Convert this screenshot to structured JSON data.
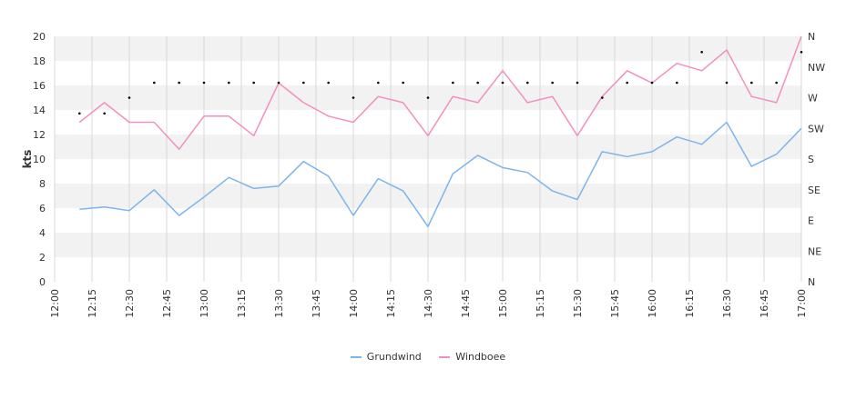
{
  "chart_data": {
    "type": "line",
    "ylabel": "kts",
    "ylim": [
      0,
      20
    ],
    "yticks": [
      0,
      2,
      4,
      6,
      8,
      10,
      12,
      14,
      16,
      18,
      20
    ],
    "direction_ticks": [
      "N",
      "NE",
      "E",
      "SE",
      "S",
      "SW",
      "W",
      "NW",
      "N"
    ],
    "xlim": [
      "12:00",
      "17:00"
    ],
    "xticks": [
      "12:00",
      "12:15",
      "12:30",
      "12:45",
      "13:00",
      "13:15",
      "13:30",
      "13:45",
      "14:00",
      "14:15",
      "14:30",
      "14:45",
      "15:00",
      "15:15",
      "15:30",
      "15:45",
      "16:00",
      "16:15",
      "16:30",
      "16:45",
      "17:00"
    ],
    "x": [
      "12:10",
      "12:20",
      "12:30",
      "12:40",
      "12:50",
      "13:00",
      "13:10",
      "13:20",
      "13:30",
      "13:40",
      "13:50",
      "14:00",
      "14:10",
      "14:20",
      "14:30",
      "14:40",
      "14:50",
      "15:00",
      "15:10",
      "15:20",
      "15:30",
      "15:40",
      "15:50",
      "16:00",
      "16:10",
      "16:20",
      "16:30",
      "16:40",
      "16:50",
      "17:00"
    ],
    "series": [
      {
        "name": "Grundwind",
        "color": "#7cb5ec",
        "values": [
          5.9,
          6.1,
          5.8,
          7.5,
          5.4,
          6.9,
          8.5,
          7.6,
          7.8,
          9.8,
          8.6,
          5.4,
          8.4,
          7.4,
          4.5,
          8.8,
          10.3,
          9.3,
          8.9,
          7.4,
          6.7,
          10.6,
          10.2,
          10.6,
          11.8,
          11.2,
          13.0,
          9.4,
          10.4,
          12.5
        ]
      },
      {
        "name": "Windboee",
        "color": "#f28fbf",
        "values": [
          13.0,
          14.6,
          13.0,
          13.0,
          10.8,
          13.5,
          13.5,
          11.9,
          16.2,
          14.6,
          13.5,
          13.0,
          15.1,
          14.6,
          11.9,
          15.1,
          14.6,
          17.2,
          14.6,
          15.1,
          11.9,
          15.1,
          17.2,
          16.2,
          17.8,
          17.2,
          18.9,
          15.1,
          14.6,
          20.0
        ]
      }
    ],
    "direction_points": {
      "x": [
        "12:10",
        "12:20",
        "12:30",
        "12:40",
        "12:50",
        "13:00",
        "13:10",
        "13:20",
        "13:30",
        "13:40",
        "13:50",
        "14:00",
        "14:10",
        "14:20",
        "14:30",
        "14:40",
        "14:50",
        "15:00",
        "15:10",
        "15:20",
        "15:30",
        "15:40",
        "15:50",
        "16:00",
        "16:10",
        "16:20",
        "16:30",
        "16:40",
        "16:50",
        "17:00"
      ],
      "degrees": [
        247,
        247,
        270,
        292,
        292,
        292,
        292,
        292,
        292,
        292,
        292,
        270,
        292,
        292,
        270,
        292,
        292,
        292,
        292,
        292,
        292,
        270,
        292,
        292,
        292,
        337,
        292,
        292,
        292,
        337
      ]
    },
    "legend_position": "bottom-center",
    "grid": true,
    "band_colors": [
      "#ffffff",
      "#f2f2f2"
    ]
  },
  "legend": [
    {
      "label": "Grundwind",
      "color": "#7cb5ec"
    },
    {
      "label": "Windboee",
      "color": "#f28fbf"
    }
  ]
}
